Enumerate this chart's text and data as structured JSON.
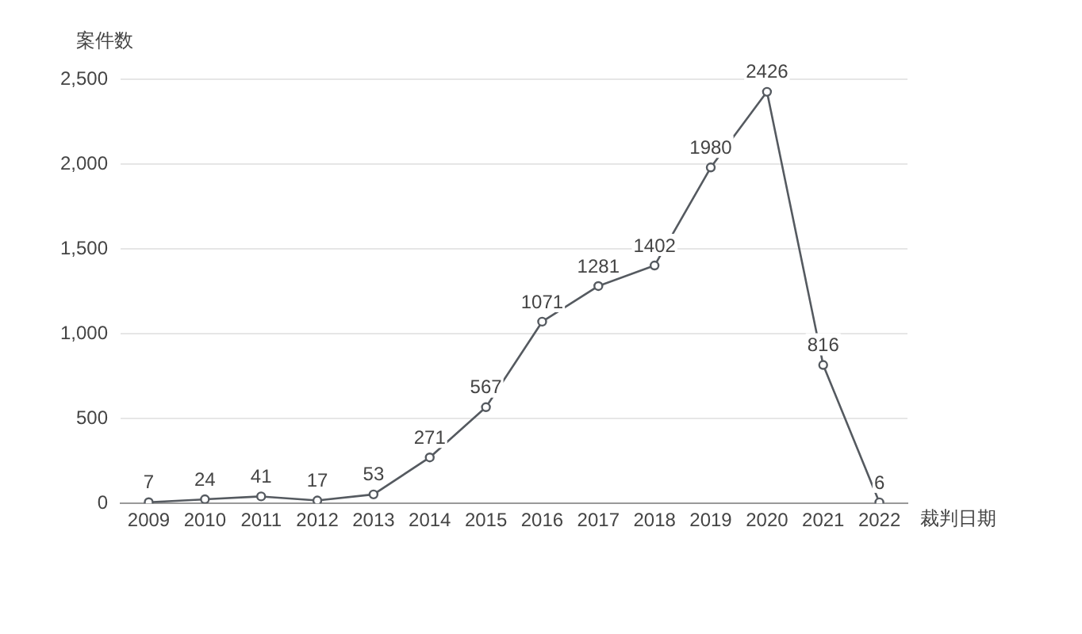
{
  "chart_data": {
    "type": "line",
    "xlabel": "裁判日期",
    "ylabel": "案件数",
    "categories": [
      "2009",
      "2010",
      "2011",
      "2012",
      "2013",
      "2014",
      "2015",
      "2016",
      "2017",
      "2018",
      "2019",
      "2020",
      "2021",
      "2022"
    ],
    "series": [
      {
        "color": "#555a60",
        "values": [
          7,
          24,
          41,
          17,
          53,
          271,
          567,
          1071,
          1281,
          1402,
          1980,
          2426,
          816,
          6
        ]
      }
    ],
    "ylim": [
      0,
      2500
    ],
    "yticks": [
      0,
      {
        "value": 500,
        "label": "500"
      },
      {
        "value": 1000,
        "label": "1,000"
      },
      {
        "value": 1500,
        "label": "1,500"
      },
      {
        "value": 2000,
        "label": "2,000"
      },
      {
        "value": 2500,
        "label": "2,500"
      }
    ],
    "grid": "y",
    "data_labels": true,
    "marker": "circle",
    "legend": false
  }
}
